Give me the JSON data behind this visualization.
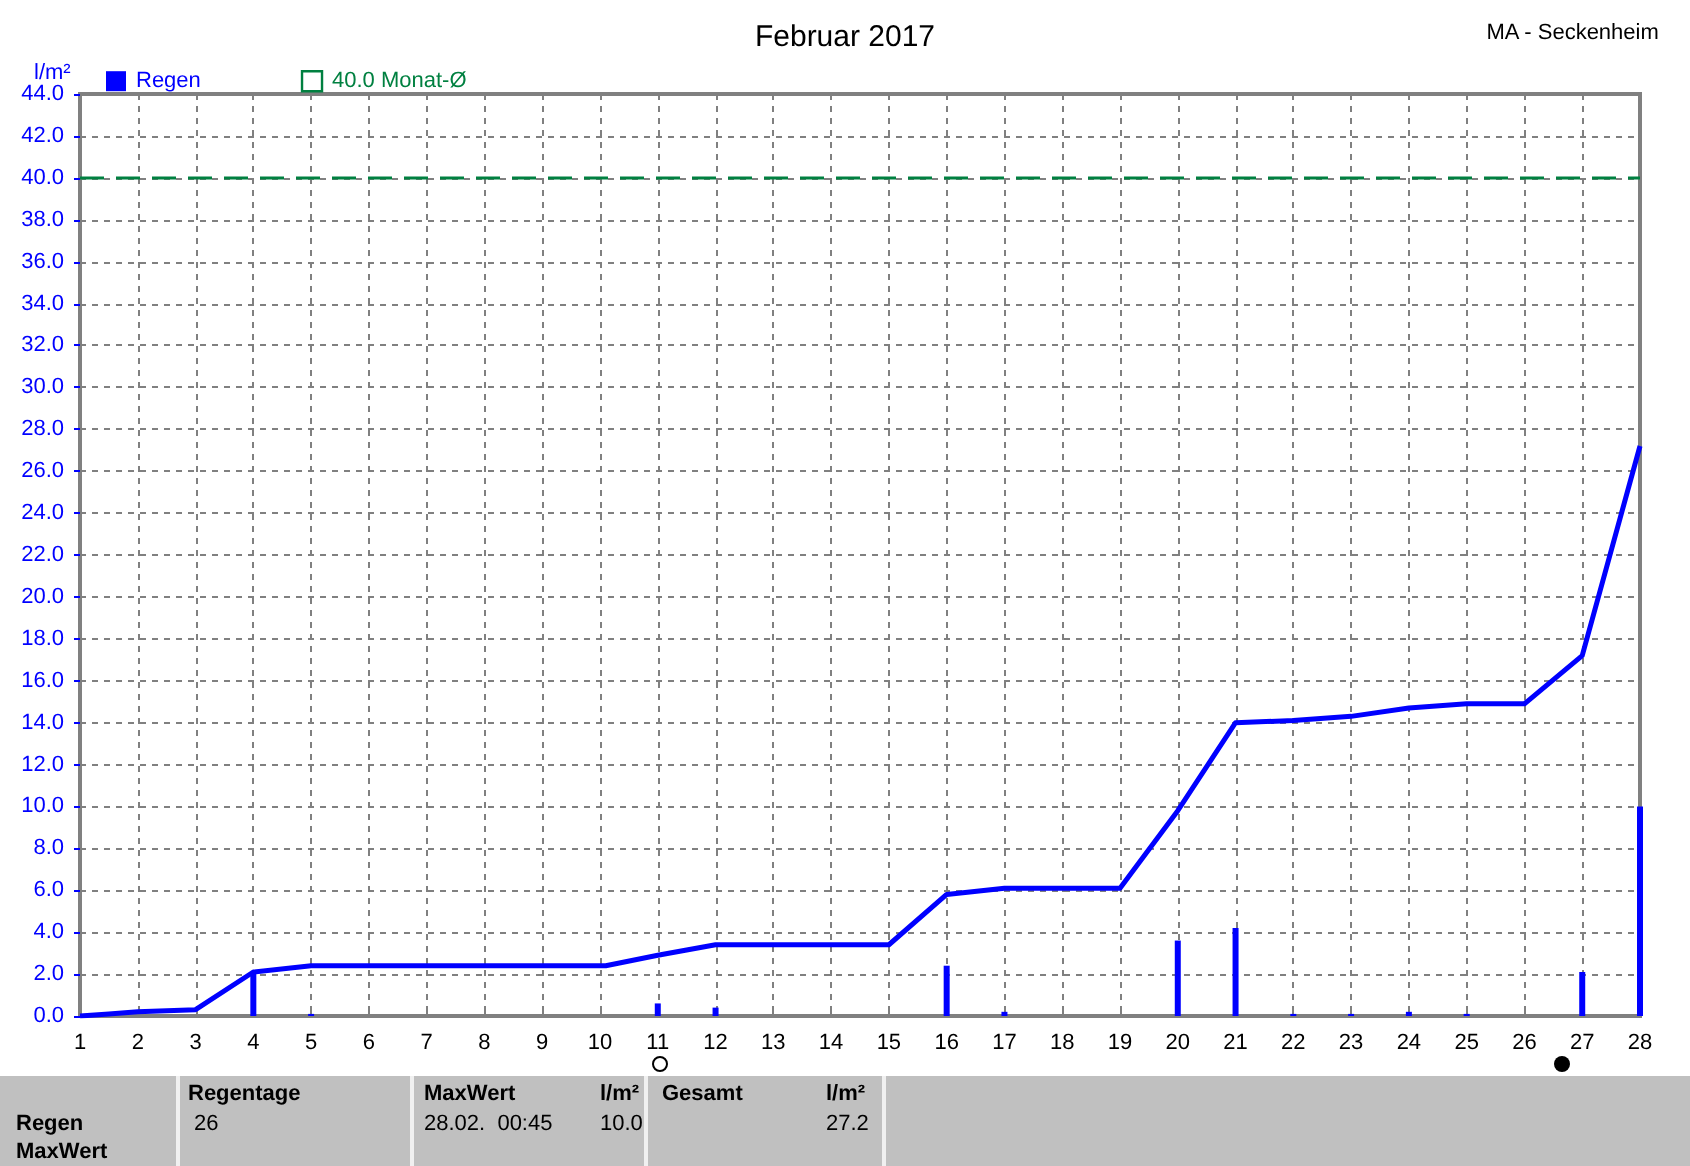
{
  "chart_data": {
    "type": "bar",
    "title": "Februar 2017",
    "subtitle": "MA - Seckenheim",
    "ylabel": "l/m²",
    "xlim": [
      1,
      28
    ],
    "xticks": [
      1,
      2,
      3,
      4,
      5,
      6,
      7,
      8,
      9,
      10,
      11,
      12,
      13,
      14,
      15,
      16,
      17,
      18,
      19,
      20,
      21,
      22,
      23,
      24,
      25,
      26,
      27,
      28
    ],
    "ylim": [
      0,
      44
    ],
    "yticks": [
      {
        "value": 0,
        "label": "0.0"
      },
      {
        "value": 2,
        "label": "2.0"
      },
      {
        "value": 4,
        "label": "4.0"
      },
      {
        "value": 6,
        "label": "6.0"
      },
      {
        "value": 8,
        "label": "8.0"
      },
      {
        "value": 10,
        "label": "10.0"
      },
      {
        "value": 12,
        "label": "12.0"
      },
      {
        "value": 14,
        "label": "14.0"
      },
      {
        "value": 16,
        "label": "16.0"
      },
      {
        "value": 18,
        "label": "18.0"
      },
      {
        "value": 20,
        "label": "20.0"
      },
      {
        "value": 22,
        "label": "22.0"
      },
      {
        "value": 24,
        "label": "24.0"
      },
      {
        "value": 26,
        "label": "26.0"
      },
      {
        "value": 28,
        "label": "28.0"
      },
      {
        "value": 30,
        "label": "30.0"
      },
      {
        "value": 32,
        "label": "32.0"
      },
      {
        "value": 34,
        "label": "34.0"
      },
      {
        "value": 36,
        "label": "36.0"
      },
      {
        "value": 38,
        "label": "38.0"
      },
      {
        "value": 40,
        "label": "40.0"
      },
      {
        "value": 42,
        "label": "42.0"
      },
      {
        "value": 44,
        "label": "44.0"
      }
    ],
    "grid": true,
    "legend": "top left",
    "series": [
      {
        "name": "Regen",
        "color": "#0000ff",
        "x": [
          4,
          5,
          11,
          12,
          16,
          17,
          20,
          21,
          22,
          23,
          24,
          25,
          27,
          28
        ],
        "values": [
          2.1,
          0.1,
          0.6,
          0.4,
          2.4,
          0.2,
          3.6,
          4.2,
          0.1,
          0.1,
          0.2,
          0.1,
          2.1,
          10.0
        ]
      },
      {
        "type": "line",
        "color": "#0000ff",
        "x": [
          1,
          1.5,
          2,
          3,
          4,
          5,
          10.1,
          11,
          12,
          15,
          16,
          17,
          19,
          20,
          21,
          22,
          23,
          24,
          25,
          26,
          27,
          28
        ],
        "values": [
          0,
          0.1,
          0.2,
          0.3,
          2.1,
          2.4,
          2.4,
          2.9,
          3.4,
          3.4,
          5.8,
          6.1,
          6.1,
          9.8,
          14.0,
          14.1,
          14.3,
          14.7,
          14.9,
          14.9,
          17.2,
          27.2
        ]
      }
    ],
    "ref_lines": [
      {
        "axis": "y",
        "value": 40,
        "label": "40.0 Monat-Ø",
        "color": "#008040",
        "line_style": "dashed"
      }
    ],
    "annotations": [
      "Regentage",
      "26",
      "MaxWert",
      "l/m²",
      "28.02.  00:45",
      "10.0",
      "Gesamt",
      "l/m²",
      "27.2",
      "Regen",
      "MaxWert"
    ]
  }
}
